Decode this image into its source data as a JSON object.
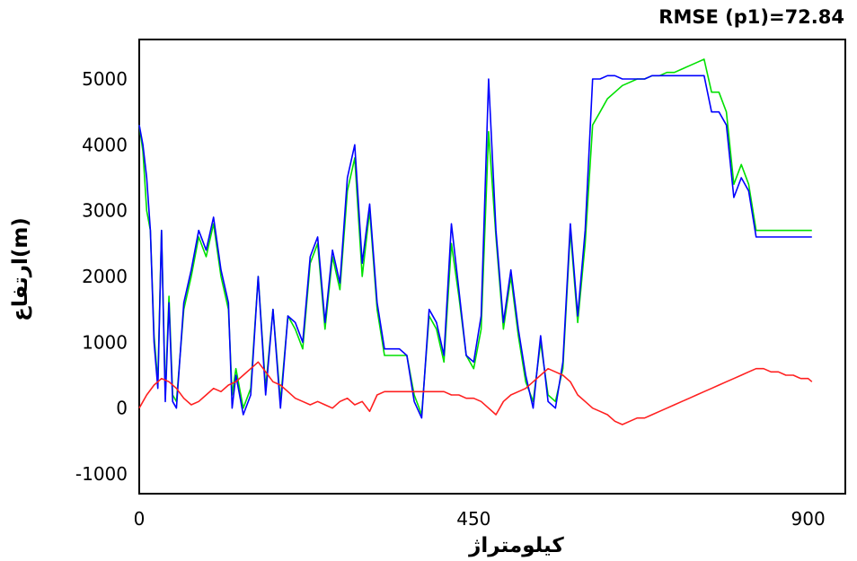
{
  "chart_data": {
    "type": "line",
    "title": "RMSE (p1)=72.84",
    "xlabel": "کیلومتراژ",
    "ylabel": "ارتفاع(m)",
    "xlim": [
      0,
      950
    ],
    "ylim": [
      -1300,
      5600
    ],
    "x_ticks": [
      "0",
      "450",
      "900"
    ],
    "x_tick_values": [
      0,
      450,
      900
    ],
    "y_ticks": [
      "5000",
      "4000",
      "3000",
      "2000",
      "1000",
      "0",
      "-1000"
    ],
    "y_tick_values": [
      5000,
      4000,
      3000,
      2000,
      1000,
      0,
      -1000
    ],
    "grid": false,
    "series": [
      {
        "color": "#00e000",
        "x": [
          0,
          5,
          10,
          15,
          20,
          25,
          30,
          35,
          40,
          45,
          50,
          60,
          70,
          80,
          90,
          100,
          110,
          120,
          125,
          130,
          140,
          150,
          160,
          170,
          180,
          190,
          200,
          210,
          220,
          230,
          240,
          250,
          260,
          270,
          280,
          290,
          300,
          310,
          320,
          330,
          340,
          350,
          360,
          370,
          380,
          390,
          400,
          410,
          420,
          430,
          440,
          450,
          460,
          470,
          480,
          490,
          500,
          510,
          520,
          530,
          540,
          550,
          560,
          570,
          580,
          590,
          600,
          610,
          620,
          630,
          640,
          650,
          660,
          670,
          680,
          690,
          700,
          710,
          720,
          730,
          740,
          750,
          760,
          770,
          780,
          790,
          800,
          810,
          820,
          830,
          840,
          850,
          860,
          870,
          875,
          880,
          890,
          900,
          905
        ],
        "values": [
          4300,
          3900,
          3000,
          2700,
          1100,
          400,
          2700,
          200,
          1700,
          200,
          100,
          1500,
          2000,
          2600,
          2300,
          2800,
          2000,
          1500,
          200,
          600,
          0,
          300,
          2000,
          300,
          1500,
          100,
          1400,
          1200,
          900,
          2200,
          2500,
          1200,
          2300,
          1800,
          3300,
          3800,
          2000,
          3000,
          1500,
          800,
          800,
          800,
          800,
          200,
          -100,
          1400,
          1200,
          700,
          2500,
          1700,
          800,
          600,
          1200,
          4200,
          2600,
          1200,
          2000,
          1100,
          400,
          100,
          1000,
          200,
          100,
          600,
          2700,
          1300,
          2500,
          4300,
          4500,
          4700,
          4800,
          4900,
          4950,
          5000,
          5000,
          5050,
          5050,
          5100,
          5100,
          5150,
          5200,
          5250,
          5300,
          4800,
          4800,
          4500,
          3400,
          3700,
          3400,
          2700,
          2700,
          2700,
          2700,
          2700,
          2700,
          2700,
          2700,
          2700,
          2700
        ]
      },
      {
        "color": "#0000ff",
        "x": [
          0,
          5,
          10,
          15,
          20,
          25,
          30,
          35,
          40,
          45,
          50,
          60,
          70,
          80,
          90,
          100,
          110,
          120,
          125,
          130,
          140,
          150,
          160,
          170,
          180,
          190,
          200,
          210,
          220,
          230,
          240,
          250,
          260,
          270,
          280,
          290,
          300,
          310,
          320,
          330,
          340,
          350,
          360,
          370,
          380,
          390,
          400,
          410,
          420,
          430,
          440,
          450,
          460,
          470,
          480,
          490,
          500,
          510,
          520,
          530,
          540,
          550,
          560,
          570,
          580,
          590,
          600,
          610,
          620,
          630,
          640,
          650,
          660,
          670,
          680,
          690,
          700,
          710,
          720,
          730,
          740,
          750,
          760,
          770,
          780,
          790,
          800,
          810,
          820,
          830,
          840,
          850,
          860,
          870,
          875,
          880,
          890,
          900,
          905
        ],
        "values": [
          4300,
          4000,
          3500,
          2700,
          1000,
          300,
          2700,
          100,
          1600,
          100,
          0,
          1600,
          2100,
          2700,
          2400,
          2900,
          2100,
          1600,
          0,
          500,
          -100,
          200,
          2000,
          200,
          1500,
          0,
          1400,
          1300,
          1000,
          2300,
          2600,
          1300,
          2400,
          1900,
          3500,
          4000,
          2200,
          3100,
          1600,
          900,
          900,
          900,
          800,
          100,
          -150,
          1500,
          1300,
          800,
          2800,
          1800,
          800,
          700,
          1400,
          5000,
          2700,
          1300,
          2100,
          1200,
          500,
          0,
          1100,
          100,
          0,
          700,
          2800,
          1400,
          2700,
          5000,
          5000,
          5050,
          5050,
          5000,
          5000,
          5000,
          5000,
          5050,
          5050,
          5050,
          5050,
          5050,
          5050,
          5050,
          5050,
          4500,
          4500,
          4300,
          3200,
          3500,
          3300,
          2600,
          2600,
          2600,
          2600,
          2600,
          2600,
          2600,
          2600,
          2600,
          2600
        ]
      },
      {
        "color": "#ff2020",
        "x": [
          0,
          10,
          20,
          30,
          40,
          50,
          60,
          70,
          80,
          90,
          100,
          110,
          120,
          130,
          140,
          150,
          160,
          170,
          180,
          190,
          200,
          210,
          220,
          230,
          240,
          250,
          260,
          270,
          280,
          290,
          300,
          310,
          320,
          330,
          340,
          350,
          360,
          370,
          380,
          390,
          400,
          410,
          420,
          430,
          440,
          450,
          460,
          470,
          480,
          490,
          500,
          510,
          520,
          530,
          540,
          550,
          560,
          570,
          580,
          590,
          600,
          610,
          620,
          630,
          640,
          650,
          660,
          670,
          680,
          690,
          700,
          710,
          720,
          730,
          740,
          750,
          760,
          770,
          780,
          790,
          800,
          810,
          820,
          830,
          840,
          850,
          860,
          870,
          880,
          890,
          900,
          905
        ],
        "values": [
          0,
          200,
          350,
          450,
          400,
          300,
          150,
          50,
          100,
          200,
          300,
          250,
          350,
          400,
          500,
          600,
          700,
          550,
          400,
          350,
          250,
          150,
          100,
          50,
          100,
          50,
          0,
          100,
          150,
          50,
          100,
          -50,
          200,
          250,
          250,
          250,
          250,
          250,
          250,
          250,
          250,
          250,
          200,
          200,
          150,
          150,
          100,
          0,
          -100,
          100,
          200,
          250,
          300,
          400,
          500,
          600,
          550,
          500,
          400,
          200,
          100,
          0,
          -50,
          -100,
          -200,
          -250,
          -200,
          -150,
          -150,
          -100,
          -50,
          0,
          50,
          100,
          150,
          200,
          250,
          300,
          350,
          400,
          450,
          500,
          550,
          600,
          600,
          550,
          550,
          500,
          500,
          450,
          450,
          400
        ]
      }
    ]
  }
}
